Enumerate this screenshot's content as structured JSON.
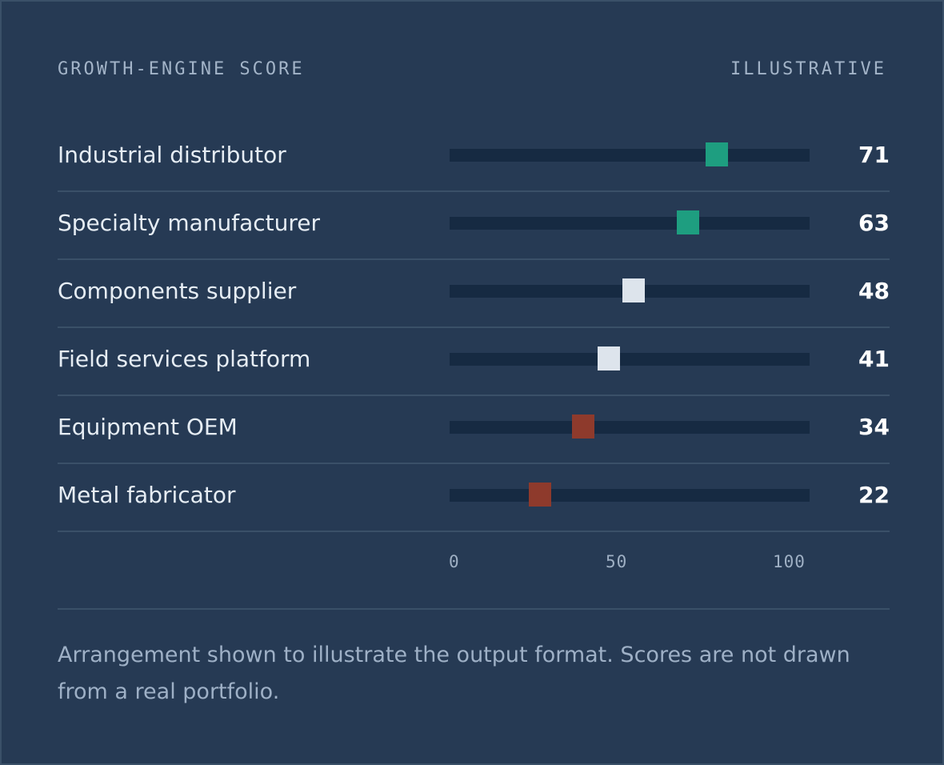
{
  "header": {
    "title": "GROWTH-ENGINE SCORE",
    "tag": "ILLUSTRATIVE"
  },
  "colors": {
    "high": "#1e9e80",
    "mid": "#dde4ec",
    "low": "#8e3a2c"
  },
  "chart_data": {
    "type": "dot",
    "xlim": [
      0,
      100
    ],
    "ticks": [
      "0",
      "50",
      "100"
    ],
    "rows": [
      {
        "label": "Industrial distributor",
        "value": 71,
        "value_label": "71",
        "level": "high"
      },
      {
        "label": "Specialty manufacturer",
        "value": 63,
        "value_label": "63",
        "level": "high"
      },
      {
        "label": "Components supplier",
        "value": 48,
        "value_label": "48",
        "level": "mid"
      },
      {
        "label": "Field services platform",
        "value": 41,
        "value_label": "41",
        "level": "mid"
      },
      {
        "label": "Equipment OEM",
        "value": 34,
        "value_label": "34",
        "level": "low"
      },
      {
        "label": "Metal fabricator",
        "value": 22,
        "value_label": "22",
        "level": "low"
      }
    ]
  },
  "footnote": "Arrangement shown to illustrate the output format. Scores are not drawn from a real portfolio."
}
